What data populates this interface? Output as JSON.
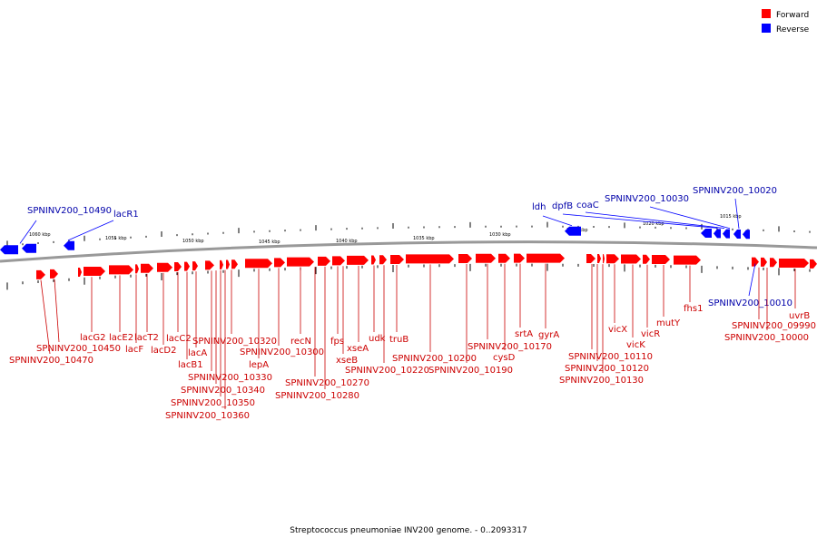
{
  "colors": {
    "forward": "#ff0000",
    "reverse": "#0000ff",
    "backbone": "#999999"
  },
  "legend": {
    "forward": "Forward",
    "reverse": "Reverse"
  },
  "caption": "Streptococcus pneumoniae INV200 genome. - 0..2093317",
  "ticks": [
    {
      "kbp": 1060,
      "label": "1060 kbp"
    },
    {
      "kbp": 1055,
      "label": "1055 kbp"
    },
    {
      "kbp": 1050,
      "label": "1050 kbp"
    },
    {
      "kbp": 1045,
      "label": "1045 kbp"
    },
    {
      "kbp": 1040,
      "label": "1040 kbp"
    },
    {
      "kbp": 1035,
      "label": "1035 kbp"
    },
    {
      "kbp": 1030,
      "label": "1030 kbp"
    },
    {
      "kbp": 1025,
      "label": "1025 kbp"
    },
    {
      "kbp": 1020,
      "label": "1020 kbp"
    },
    {
      "kbp": 1015,
      "label": "1015 kbp"
    }
  ],
  "forward_labels": [
    "SPNINV200_10470",
    "SPNINV200_10450",
    "lacG2",
    "lacE2",
    "lacF",
    "lacT2",
    "lacD2",
    "lacC2",
    "lacB1",
    "lacA",
    "SPNINV200_10330",
    "SPNINV200_10340",
    "SPNINV200_10350",
    "SPNINV200_10360",
    "SPNINV200_10320",
    "lepA",
    "SPNINV200_10300",
    "recN",
    "SPNINV200_10270",
    "SPNINV200_10280",
    "fps",
    "xseB",
    "xseA",
    "SPNINV200_10220",
    "udk",
    "truB",
    "SPNINV200_10200",
    "SPNINV200_10190",
    "SPNINV200_10170",
    "cysD",
    "srtA",
    "gyrA",
    "SPNINV200_10110",
    "SPNINV200_10120",
    "SPNINV200_10130",
    "vicX",
    "vicK",
    "vicR",
    "mutY",
    "fhs1",
    "SPNINV200_09990",
    "SPNINV200_10000",
    "uvrB"
  ],
  "reverse_labels": [
    "SPNINV200_10490",
    "lacR1",
    "ldh",
    "dpfB",
    "coaC",
    "SPNINV200_10030",
    "SPNINV200_10020",
    "SPNINV200_10010"
  ]
}
